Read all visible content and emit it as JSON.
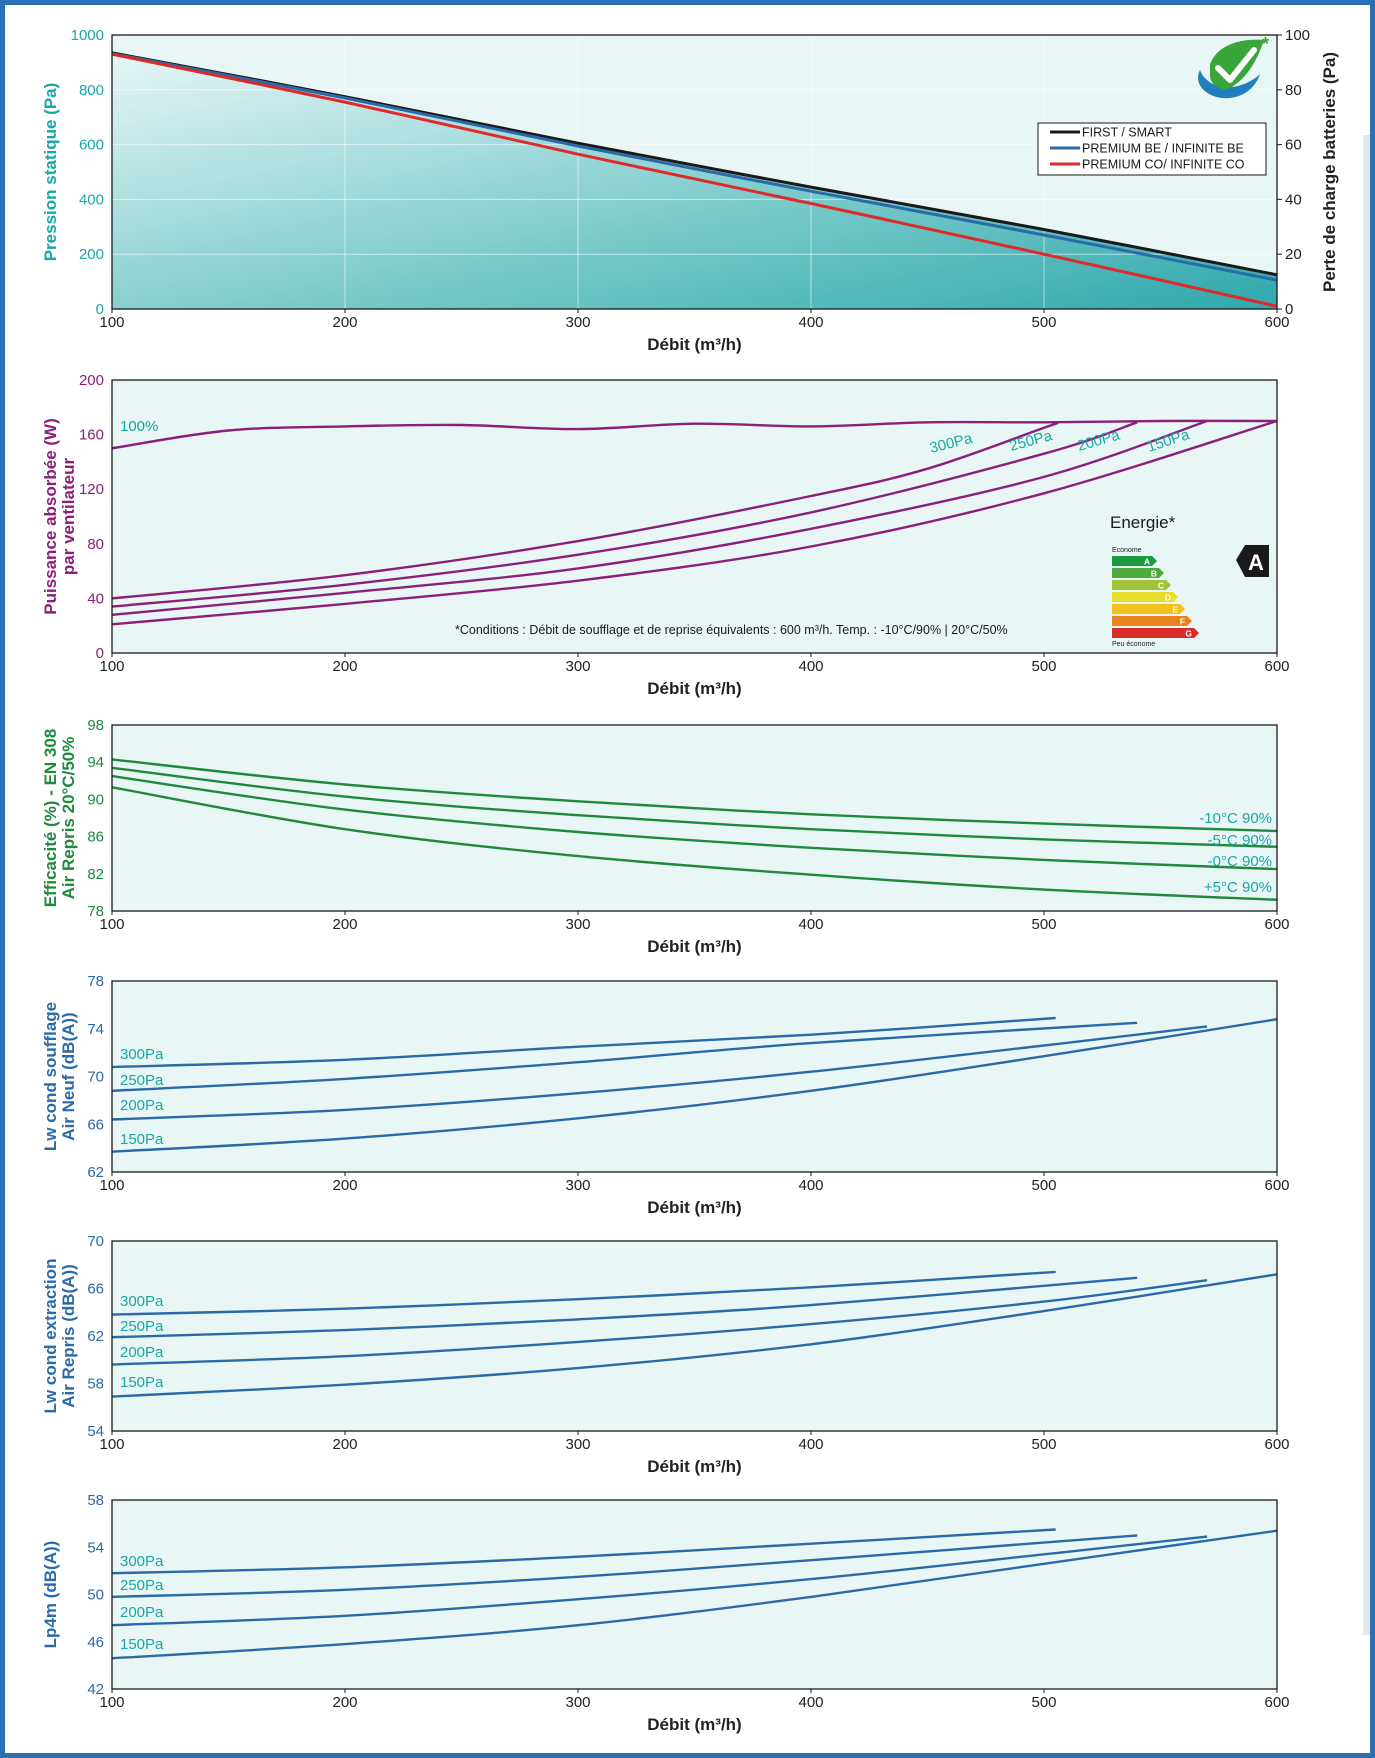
{
  "colors": {
    "frame": "#2b6fb6",
    "panel": "#e9f6f6",
    "teal": "#1aa6a6",
    "purple": "#8b1f7a",
    "green": "#1f8a3b",
    "blue": "#2a6aa8",
    "black": "#1a1a1a",
    "red": "#e02a2a"
  },
  "logo": {
    "icon": "green-check-leaf-logo",
    "asterisk": "*"
  },
  "chart_data": [
    {
      "type": "area",
      "id": "pression",
      "ylabel": "Pression statique (Pa)",
      "y2label": "Perte de charge batteries (Pa)",
      "xlabel": "Débit (m³/h)",
      "xlim": [
        100,
        600
      ],
      "ylim": [
        0,
        1000
      ],
      "y2lim": [
        0,
        100
      ],
      "xticks": [
        100,
        200,
        300,
        400,
        500,
        600
      ],
      "yticks": [
        0,
        200,
        400,
        600,
        800,
        1000
      ],
      "y2ticks": [
        0,
        20,
        40,
        60,
        80,
        100
      ],
      "grid": true,
      "legend_position": "top-right",
      "series": [
        {
          "name": "FIRST / SMART",
          "color": "#1a1a1a",
          "x": [
            100,
            200,
            300,
            400,
            500,
            600
          ],
          "y": [
            935,
            775,
            605,
            445,
            290,
            125
          ]
        },
        {
          "name": "PREMIUM BE / INFINITE BE",
          "color": "#2a6aa8",
          "x": [
            100,
            200,
            300,
            400,
            500,
            600
          ],
          "y": [
            932,
            770,
            595,
            430,
            270,
            105
          ]
        },
        {
          "name": "PREMIUM CO/ INFINITE CO",
          "color": "#e02a2a",
          "x": [
            100,
            200,
            300,
            400,
            500,
            600
          ],
          "y": [
            930,
            755,
            565,
            385,
            200,
            10
          ]
        }
      ]
    },
    {
      "type": "line",
      "id": "puissance",
      "ylabel": "Puissance absorbée (W)",
      "ylabel2": "par ventilateur",
      "xlabel": "Débit (m³/h)",
      "xlim": [
        100,
        600
      ],
      "ylim": [
        0,
        200
      ],
      "xticks": [
        100,
        200,
        300,
        400,
        500,
        600
      ],
      "yticks": [
        0,
        40,
        80,
        120,
        160,
        200
      ],
      "grid": false,
      "note": "*Conditions : Débit de soufflage et de reprise équivalents : 600 m³/h. Temp. : -10°C/90% | 20°C/50%",
      "energy_label": {
        "title": "Energie*",
        "top": "Econome",
        "bottom": "Peu économe",
        "classes": [
          "A",
          "B",
          "C",
          "D",
          "E",
          "F",
          "G"
        ],
        "class_colors": [
          "#1a9a3e",
          "#4cab3a",
          "#9ec43a",
          "#e8dd2a",
          "#f2c21a",
          "#e8831e",
          "#d92a2a"
        ],
        "rating": "A"
      },
      "series": [
        {
          "name": "100%",
          "x": [
            100,
            150,
            200,
            250,
            300,
            350,
            400,
            450,
            500,
            550,
            600
          ],
          "y": [
            150,
            163,
            166,
            167,
            164,
            168,
            166,
            169,
            169,
            170,
            170
          ]
        },
        {
          "name": "300Pa",
          "x": [
            100,
            200,
            300,
            400,
            450,
            500,
            505
          ],
          "y": [
            40,
            57,
            82,
            115,
            135,
            165,
            168
          ]
        },
        {
          "name": "250Pa",
          "x": [
            100,
            200,
            300,
            400,
            500,
            540
          ],
          "y": [
            34,
            50,
            72,
            103,
            146,
            169
          ]
        },
        {
          "name": "200Pa",
          "x": [
            100,
            200,
            300,
            400,
            500,
            570
          ],
          "y": [
            28,
            44,
            62,
            91,
            129,
            170
          ]
        },
        {
          "name": "150Pa",
          "x": [
            100,
            200,
            300,
            400,
            500,
            600
          ],
          "y": [
            21,
            36,
            53,
            78,
            117,
            170
          ]
        }
      ]
    },
    {
      "type": "line",
      "id": "efficacite",
      "ylabel": "Efficacité (%) - EN 308",
      "ylabel2": "Air Repris 20°C/50%",
      "xlabel": "Débit (m³/h)",
      "xlim": [
        100,
        600
      ],
      "ylim": [
        78,
        98
      ],
      "xticks": [
        100,
        200,
        300,
        400,
        500,
        600
      ],
      "yticks": [
        78,
        82,
        86,
        90,
        94,
        98
      ],
      "grid": false,
      "series": [
        {
          "name": "-10°C 90%",
          "x": [
            100,
            200,
            300,
            400,
            500,
            600
          ],
          "y": [
            94.3,
            91.6,
            89.8,
            88.4,
            87.4,
            86.6
          ]
        },
        {
          "name": "-5°C 90%",
          "x": [
            100,
            200,
            300,
            400,
            500,
            600
          ],
          "y": [
            93.4,
            90.3,
            88.3,
            86.8,
            85.7,
            84.9
          ]
        },
        {
          "name": "-0°C 90%",
          "x": [
            100,
            200,
            300,
            400,
            500,
            600
          ],
          "y": [
            92.5,
            88.9,
            86.5,
            84.8,
            83.5,
            82.5
          ]
        },
        {
          "name": "+5°C 90%",
          "x": [
            100,
            200,
            300,
            400,
            500,
            600
          ],
          "y": [
            91.3,
            86.8,
            83.9,
            81.9,
            80.3,
            79.2
          ]
        }
      ]
    },
    {
      "type": "line",
      "id": "lw-soufflage",
      "ylabel": "Lw cond soufflage",
      "ylabel2": "Air Neuf (dB(A))",
      "xlabel": "Débit (m³/h)",
      "xlim": [
        100,
        600
      ],
      "ylim": [
        62,
        78
      ],
      "xticks": [
        100,
        200,
        300,
        400,
        500,
        600
      ],
      "yticks": [
        62,
        66,
        70,
        74,
        78
      ],
      "grid": false,
      "series": [
        {
          "name": "300Pa",
          "x": [
            100,
            200,
            300,
            400,
            505
          ],
          "y": [
            70.8,
            71.4,
            72.5,
            73.5,
            74.9
          ]
        },
        {
          "name": "250Pa",
          "x": [
            100,
            200,
            300,
            400,
            540
          ],
          "y": [
            68.8,
            69.8,
            71.2,
            72.8,
            74.5
          ]
        },
        {
          "name": "200Pa",
          "x": [
            100,
            200,
            300,
            400,
            500,
            570
          ],
          "y": [
            66.4,
            67.2,
            68.6,
            70.4,
            72.6,
            74.2
          ]
        },
        {
          "name": "150Pa",
          "x": [
            100,
            200,
            300,
            400,
            500,
            600
          ],
          "y": [
            63.7,
            64.8,
            66.5,
            68.8,
            71.7,
            74.8
          ]
        }
      ]
    },
    {
      "type": "line",
      "id": "lw-extraction",
      "ylabel": "Lw cond extraction",
      "ylabel2": "Air Repris (dB(A))",
      "xlabel": "Débit (m³/h)",
      "xlim": [
        100,
        600
      ],
      "ylim": [
        54,
        70
      ],
      "xticks": [
        100,
        200,
        300,
        400,
        500,
        600
      ],
      "yticks": [
        54,
        58,
        62,
        66,
        70
      ],
      "grid": false,
      "series": [
        {
          "name": "300Pa",
          "x": [
            100,
            200,
            300,
            400,
            505
          ],
          "y": [
            63.8,
            64.3,
            65.1,
            66.1,
            67.4
          ]
        },
        {
          "name": "250Pa",
          "x": [
            100,
            200,
            300,
            400,
            540
          ],
          "y": [
            61.9,
            62.5,
            63.4,
            64.6,
            66.9
          ]
        },
        {
          "name": "200Pa",
          "x": [
            100,
            200,
            300,
            400,
            500,
            570
          ],
          "y": [
            59.6,
            60.3,
            61.5,
            63.0,
            64.9,
            66.7
          ]
        },
        {
          "name": "150Pa",
          "x": [
            100,
            200,
            300,
            400,
            500,
            600
          ],
          "y": [
            56.9,
            57.9,
            59.3,
            61.3,
            64.1,
            67.2
          ]
        }
      ]
    },
    {
      "type": "line",
      "id": "lp4m",
      "ylabel": "Lp4m (dB(A))",
      "xlabel": "Débit (m³/h)",
      "xlim": [
        100,
        600
      ],
      "ylim": [
        42,
        58
      ],
      "xticks": [
        100,
        200,
        300,
        400,
        500,
        600
      ],
      "yticks": [
        42,
        46,
        50,
        54,
        58
      ],
      "grid": false,
      "series": [
        {
          "name": "300Pa",
          "x": [
            100,
            200,
            300,
            400,
            505
          ],
          "y": [
            51.8,
            52.3,
            53.2,
            54.3,
            55.5
          ]
        },
        {
          "name": "250Pa",
          "x": [
            100,
            200,
            300,
            400,
            540
          ],
          "y": [
            49.8,
            50.4,
            51.5,
            52.9,
            55.0
          ]
        },
        {
          "name": "200Pa",
          "x": [
            100,
            200,
            300,
            400,
            500,
            570
          ],
          "y": [
            47.4,
            48.2,
            49.6,
            51.3,
            53.4,
            54.9
          ]
        },
        {
          "name": "150Pa",
          "x": [
            100,
            200,
            300,
            400,
            500,
            600
          ],
          "y": [
            44.6,
            45.8,
            47.4,
            49.8,
            52.6,
            55.4
          ]
        }
      ]
    }
  ]
}
